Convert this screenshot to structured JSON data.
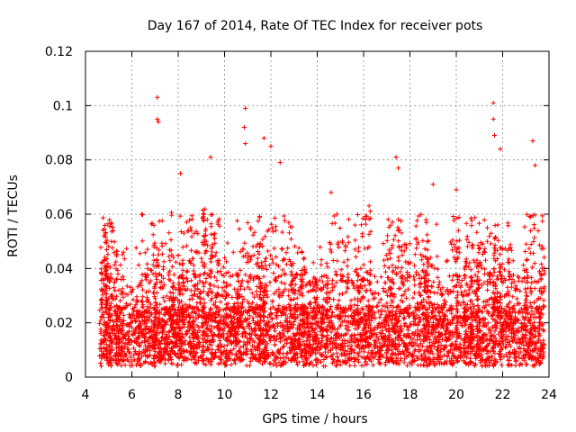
{
  "chart_data": {
    "type": "scatter",
    "title": "Day 167 of 2014, Rate Of TEC Index for receiver pots",
    "xlabel": "GPS time / hours",
    "ylabel": "ROTI / TECUs",
    "xlim": [
      4,
      24
    ],
    "ylim": [
      0,
      0.12
    ],
    "x_ticks": [
      "4",
      "6",
      "8",
      "10",
      "12",
      "14",
      "16",
      "18",
      "20",
      "22",
      "24"
    ],
    "y_ticks": [
      "0",
      "0.02",
      "0.04",
      "0.06",
      "0.08",
      "0.1",
      "0.12"
    ],
    "grid": true,
    "marker": "+",
    "color": "#ff0000",
    "x_range_of_data": [
      4.6,
      23.8
    ],
    "typical_y_range": [
      0.003,
      0.045
    ],
    "series": [
      {
        "name": "ROTI",
        "highlighted_points": [
          {
            "x": 7.1,
            "y": 0.103
          },
          {
            "x": 7.1,
            "y": 0.095
          },
          {
            "x": 7.15,
            "y": 0.094
          },
          {
            "x": 10.9,
            "y": 0.099
          },
          {
            "x": 10.85,
            "y": 0.092
          },
          {
            "x": 10.9,
            "y": 0.086
          },
          {
            "x": 11.7,
            "y": 0.088
          },
          {
            "x": 12.0,
            "y": 0.085
          },
          {
            "x": 9.4,
            "y": 0.081
          },
          {
            "x": 17.4,
            "y": 0.081
          },
          {
            "x": 17.5,
            "y": 0.077
          },
          {
            "x": 21.6,
            "y": 0.101
          },
          {
            "x": 21.6,
            "y": 0.095
          },
          {
            "x": 21.65,
            "y": 0.089
          },
          {
            "x": 21.9,
            "y": 0.084
          },
          {
            "x": 23.3,
            "y": 0.087
          },
          {
            "x": 23.4,
            "y": 0.078
          },
          {
            "x": 12.4,
            "y": 0.079
          },
          {
            "x": 8.1,
            "y": 0.075
          },
          {
            "x": 19.0,
            "y": 0.071
          },
          {
            "x": 20.0,
            "y": 0.069
          },
          {
            "x": 14.6,
            "y": 0.068
          }
        ]
      }
    ]
  }
}
